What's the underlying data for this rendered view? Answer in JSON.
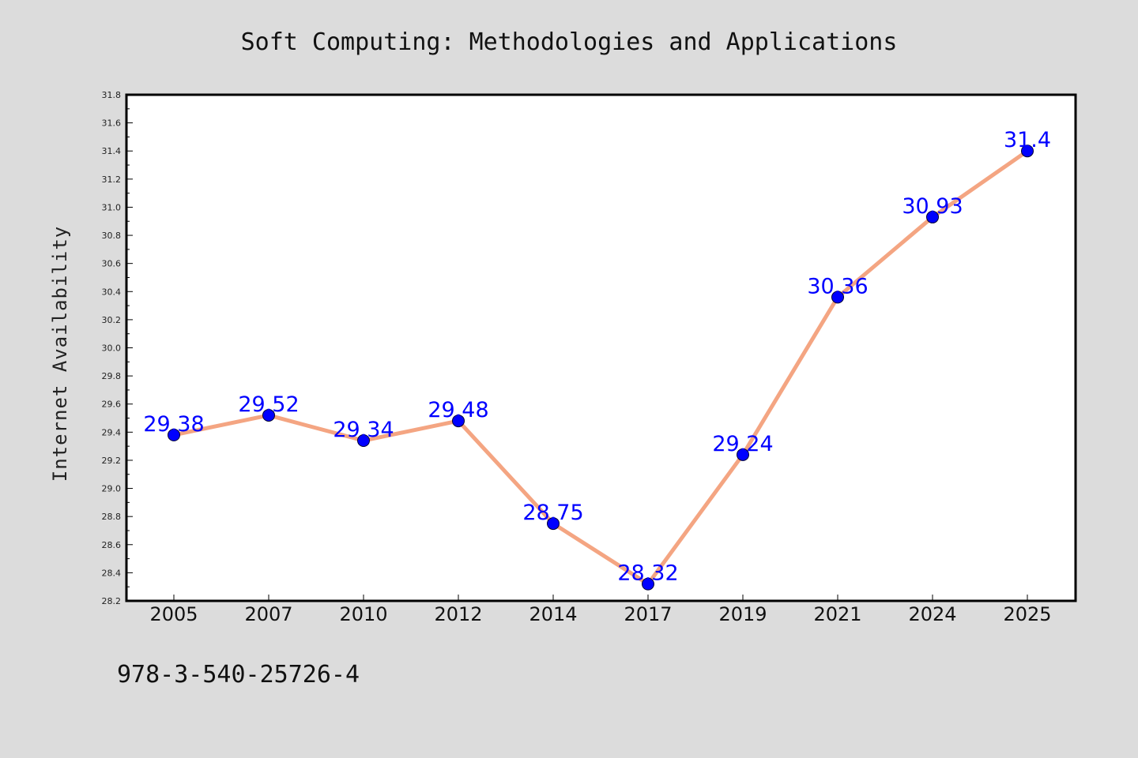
{
  "figure": {
    "background": "#dcdcdc",
    "footnote": "978-3-540-25726-4"
  },
  "chart_data": {
    "type": "line",
    "title": "Soft Computing: Methodologies and Applications",
    "xlabel": "",
    "ylabel": "Internet Availability",
    "categories": [
      "2005",
      "2007",
      "2010",
      "2012",
      "2014",
      "2017",
      "2019",
      "2021",
      "2024",
      "2025"
    ],
    "series": [
      {
        "values": [
          29.38,
          29.52,
          29.34,
          29.48,
          28.75,
          28.32,
          29.24,
          30.36,
          30.93,
          31.4
        ],
        "line_color": "#f4a582",
        "marker_color": "#0000ff",
        "label_color": "#0000ff"
      }
    ],
    "data_labels": [
      "29.38",
      "29.52",
      "29.34",
      "29.48",
      "28.75",
      "28.32",
      "29.24",
      "30.36",
      "30.93",
      "31.4"
    ],
    "ylim": [
      28.2,
      31.8
    ],
    "y_ticks": [
      "28.2",
      "28.4",
      "28.6",
      "28.8",
      "29.0",
      "29.2",
      "29.4",
      "29.6",
      "29.8",
      "30.0",
      "30.2",
      "30.4",
      "30.6",
      "30.8",
      "31.0",
      "31.2",
      "31.4",
      "31.6",
      "31.8"
    ],
    "grid": false,
    "legend": "none"
  }
}
